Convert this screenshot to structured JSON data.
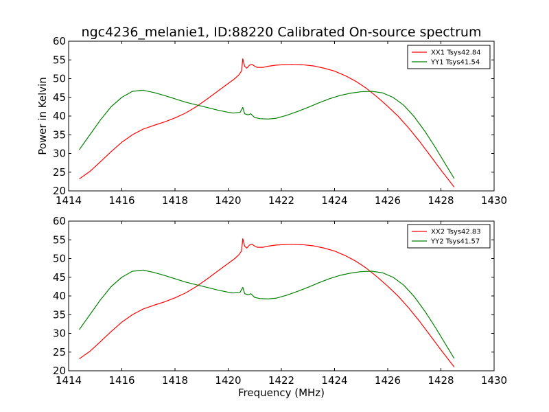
{
  "figure": {
    "title": "ngc4236_melanie1, ID:88220 Calibrated On-source spectrum",
    "ylabel": "Power in Kelvin",
    "xlabel": "Frequency (MHz)"
  },
  "chart_data": [
    {
      "type": "line",
      "title": "ngc4236_melanie1, ID:88220 Calibrated On-source spectrum",
      "xlabel": "",
      "ylabel": "Power in Kelvin",
      "xlim": [
        1414,
        1430
      ],
      "ylim": [
        20,
        60
      ],
      "xticks": [
        1414,
        1416,
        1418,
        1420,
        1422,
        1424,
        1426,
        1428,
        1430
      ],
      "yticks": [
        20,
        25,
        30,
        35,
        40,
        45,
        50,
        55,
        60
      ],
      "grid": false,
      "legend_position": "top-right",
      "series": [
        {
          "name": "XX1 Tsys42.84",
          "color": "#ff0000",
          "points": [
            [
              1414.4,
              23.2
            ],
            [
              1414.8,
              25.2
            ],
            [
              1415.2,
              27.8
            ],
            [
              1415.6,
              30.5
            ],
            [
              1416.0,
              33.0
            ],
            [
              1416.4,
              35.0
            ],
            [
              1416.8,
              36.5
            ],
            [
              1417.2,
              37.5
            ],
            [
              1417.6,
              38.4
            ],
            [
              1418.0,
              39.5
            ],
            [
              1418.4,
              40.8
            ],
            [
              1418.8,
              42.5
            ],
            [
              1419.2,
              44.5
            ],
            [
              1419.6,
              46.6
            ],
            [
              1420.0,
              48.7
            ],
            [
              1420.25,
              50.0
            ],
            [
              1420.4,
              51.0
            ],
            [
              1420.5,
              52.0
            ],
            [
              1420.55,
              55.3
            ],
            [
              1420.62,
              53.3
            ],
            [
              1420.7,
              52.8
            ],
            [
              1420.8,
              53.6
            ],
            [
              1420.9,
              53.8
            ],
            [
              1421.0,
              53.3
            ],
            [
              1421.1,
              53.0
            ],
            [
              1421.3,
              53.0
            ],
            [
              1421.5,
              53.3
            ],
            [
              1421.8,
              53.6
            ],
            [
              1422.0,
              53.7
            ],
            [
              1422.4,
              53.8
            ],
            [
              1422.8,
              53.7
            ],
            [
              1423.2,
              53.4
            ],
            [
              1423.6,
              52.8
            ],
            [
              1424.0,
              52.0
            ],
            [
              1424.4,
              50.8
            ],
            [
              1424.8,
              49.3
            ],
            [
              1425.2,
              47.4
            ],
            [
              1425.6,
              45.1
            ],
            [
              1426.0,
              42.6
            ],
            [
              1426.4,
              39.9
            ],
            [
              1426.8,
              36.7
            ],
            [
              1427.2,
              33.2
            ],
            [
              1427.6,
              29.4
            ],
            [
              1428.0,
              25.6
            ],
            [
              1428.5,
              21.0
            ]
          ]
        },
        {
          "name": "YY1 Tsys41.54",
          "color": "#008000",
          "points": [
            [
              1414.4,
              31.0
            ],
            [
              1414.8,
              35.0
            ],
            [
              1415.2,
              39.0
            ],
            [
              1415.6,
              42.5
            ],
            [
              1416.0,
              45.0
            ],
            [
              1416.4,
              46.6
            ],
            [
              1416.8,
              46.9
            ],
            [
              1417.2,
              46.3
            ],
            [
              1417.6,
              45.5
            ],
            [
              1418.0,
              44.6
            ],
            [
              1418.4,
              43.7
            ],
            [
              1418.8,
              43.0
            ],
            [
              1419.2,
              42.3
            ],
            [
              1419.6,
              41.6
            ],
            [
              1420.0,
              41.0
            ],
            [
              1420.2,
              40.8
            ],
            [
              1420.45,
              41.0
            ],
            [
              1420.55,
              42.3
            ],
            [
              1420.62,
              40.6
            ],
            [
              1420.75,
              40.3
            ],
            [
              1420.85,
              40.6
            ],
            [
              1421.0,
              39.6
            ],
            [
              1421.2,
              39.3
            ],
            [
              1421.5,
              39.2
            ],
            [
              1421.8,
              39.4
            ],
            [
              1422.2,
              40.2
            ],
            [
              1422.6,
              41.2
            ],
            [
              1423.0,
              42.3
            ],
            [
              1423.4,
              43.5
            ],
            [
              1423.8,
              44.6
            ],
            [
              1424.2,
              45.5
            ],
            [
              1424.6,
              46.1
            ],
            [
              1425.0,
              46.5
            ],
            [
              1425.4,
              46.6
            ],
            [
              1425.8,
              46.2
            ],
            [
              1426.2,
              45.0
            ],
            [
              1426.6,
              42.9
            ],
            [
              1427.0,
              39.8
            ],
            [
              1427.4,
              35.9
            ],
            [
              1427.8,
              31.5
            ],
            [
              1428.2,
              26.8
            ],
            [
              1428.5,
              23.3
            ]
          ]
        }
      ]
    },
    {
      "type": "line",
      "title": "",
      "xlabel": "Frequency (MHz)",
      "ylabel": "",
      "xlim": [
        1414,
        1430
      ],
      "ylim": [
        20,
        60
      ],
      "xticks": [
        1414,
        1416,
        1418,
        1420,
        1422,
        1424,
        1426,
        1428,
        1430
      ],
      "yticks": [
        20,
        25,
        30,
        35,
        40,
        45,
        50,
        55,
        60
      ],
      "grid": false,
      "legend_position": "top-right",
      "series": [
        {
          "name": "XX2 Tsys42.83",
          "color": "#ff0000",
          "points": [
            [
              1414.4,
              23.2
            ],
            [
              1414.8,
              25.2
            ],
            [
              1415.2,
              27.8
            ],
            [
              1415.6,
              30.5
            ],
            [
              1416.0,
              33.0
            ],
            [
              1416.4,
              35.0
            ],
            [
              1416.8,
              36.5
            ],
            [
              1417.2,
              37.5
            ],
            [
              1417.6,
              38.4
            ],
            [
              1418.0,
              39.5
            ],
            [
              1418.4,
              40.8
            ],
            [
              1418.8,
              42.5
            ],
            [
              1419.2,
              44.5
            ],
            [
              1419.6,
              46.6
            ],
            [
              1420.0,
              48.7
            ],
            [
              1420.25,
              50.0
            ],
            [
              1420.4,
              51.0
            ],
            [
              1420.5,
              52.0
            ],
            [
              1420.55,
              55.3
            ],
            [
              1420.62,
              53.3
            ],
            [
              1420.7,
              52.8
            ],
            [
              1420.8,
              53.6
            ],
            [
              1420.9,
              53.8
            ],
            [
              1421.0,
              53.3
            ],
            [
              1421.1,
              53.0
            ],
            [
              1421.3,
              53.0
            ],
            [
              1421.5,
              53.3
            ],
            [
              1421.8,
              53.6
            ],
            [
              1422.0,
              53.7
            ],
            [
              1422.4,
              53.8
            ],
            [
              1422.8,
              53.7
            ],
            [
              1423.2,
              53.4
            ],
            [
              1423.6,
              52.8
            ],
            [
              1424.0,
              52.0
            ],
            [
              1424.4,
              50.8
            ],
            [
              1424.8,
              49.3
            ],
            [
              1425.2,
              47.4
            ],
            [
              1425.6,
              45.1
            ],
            [
              1426.0,
              42.6
            ],
            [
              1426.4,
              39.9
            ],
            [
              1426.8,
              36.7
            ],
            [
              1427.2,
              33.2
            ],
            [
              1427.6,
              29.4
            ],
            [
              1428.0,
              25.6
            ],
            [
              1428.5,
              21.0
            ]
          ]
        },
        {
          "name": "YY2 Tsys41.57",
          "color": "#008000",
          "points": [
            [
              1414.4,
              31.0
            ],
            [
              1414.8,
              35.0
            ],
            [
              1415.2,
              39.0
            ],
            [
              1415.6,
              42.5
            ],
            [
              1416.0,
              45.0
            ],
            [
              1416.4,
              46.6
            ],
            [
              1416.8,
              46.9
            ],
            [
              1417.2,
              46.3
            ],
            [
              1417.6,
              45.5
            ],
            [
              1418.0,
              44.6
            ],
            [
              1418.4,
              43.7
            ],
            [
              1418.8,
              43.0
            ],
            [
              1419.2,
              42.3
            ],
            [
              1419.6,
              41.6
            ],
            [
              1420.0,
              41.0
            ],
            [
              1420.2,
              40.8
            ],
            [
              1420.45,
              41.0
            ],
            [
              1420.55,
              42.3
            ],
            [
              1420.62,
              40.6
            ],
            [
              1420.75,
              40.3
            ],
            [
              1420.85,
              40.6
            ],
            [
              1421.0,
              39.6
            ],
            [
              1421.2,
              39.3
            ],
            [
              1421.5,
              39.2
            ],
            [
              1421.8,
              39.4
            ],
            [
              1422.2,
              40.2
            ],
            [
              1422.6,
              41.2
            ],
            [
              1423.0,
              42.3
            ],
            [
              1423.4,
              43.5
            ],
            [
              1423.8,
              44.6
            ],
            [
              1424.2,
              45.5
            ],
            [
              1424.6,
              46.1
            ],
            [
              1425.0,
              46.5
            ],
            [
              1425.4,
              46.6
            ],
            [
              1425.8,
              46.2
            ],
            [
              1426.2,
              45.0
            ],
            [
              1426.6,
              42.9
            ],
            [
              1427.0,
              39.8
            ],
            [
              1427.4,
              35.9
            ],
            [
              1427.8,
              31.5
            ],
            [
              1428.2,
              26.8
            ],
            [
              1428.5,
              23.3
            ]
          ]
        }
      ]
    }
  ]
}
